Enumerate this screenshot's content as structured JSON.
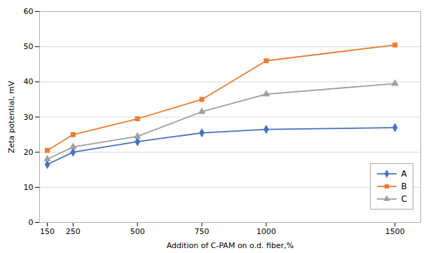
{
  "chart_data": {
    "type": "line",
    "xlabel": "Addition of C-PAM on o.d. fiber,%",
    "ylabel": "Zeta potential, mV",
    "x": [
      150,
      250,
      500,
      750,
      1000,
      1500
    ],
    "series": [
      {
        "name": "A",
        "color": "#4472C4",
        "marker": "diamond",
        "values": [
          16.5,
          20.0,
          23.0,
          25.5,
          26.5,
          27.0
        ]
      },
      {
        "name": "B",
        "color": "#ED7D31",
        "marker": "square",
        "values": [
          20.5,
          25.0,
          29.5,
          35.0,
          46.0,
          50.5
        ]
      },
      {
        "name": "C",
        "color": "#A0A0A0",
        "marker": "triangle",
        "values": [
          18.0,
          21.5,
          24.5,
          31.5,
          36.5,
          39.5
        ]
      }
    ],
    "xlim": [
      120,
      1600
    ],
    "xticks": [
      150,
      250,
      500,
      750,
      1000,
      1500
    ],
    "ylim": [
      0,
      60
    ],
    "yticks": [
      0,
      10,
      20,
      30,
      40,
      50,
      60
    ],
    "grid": true,
    "legend": "lower right"
  }
}
